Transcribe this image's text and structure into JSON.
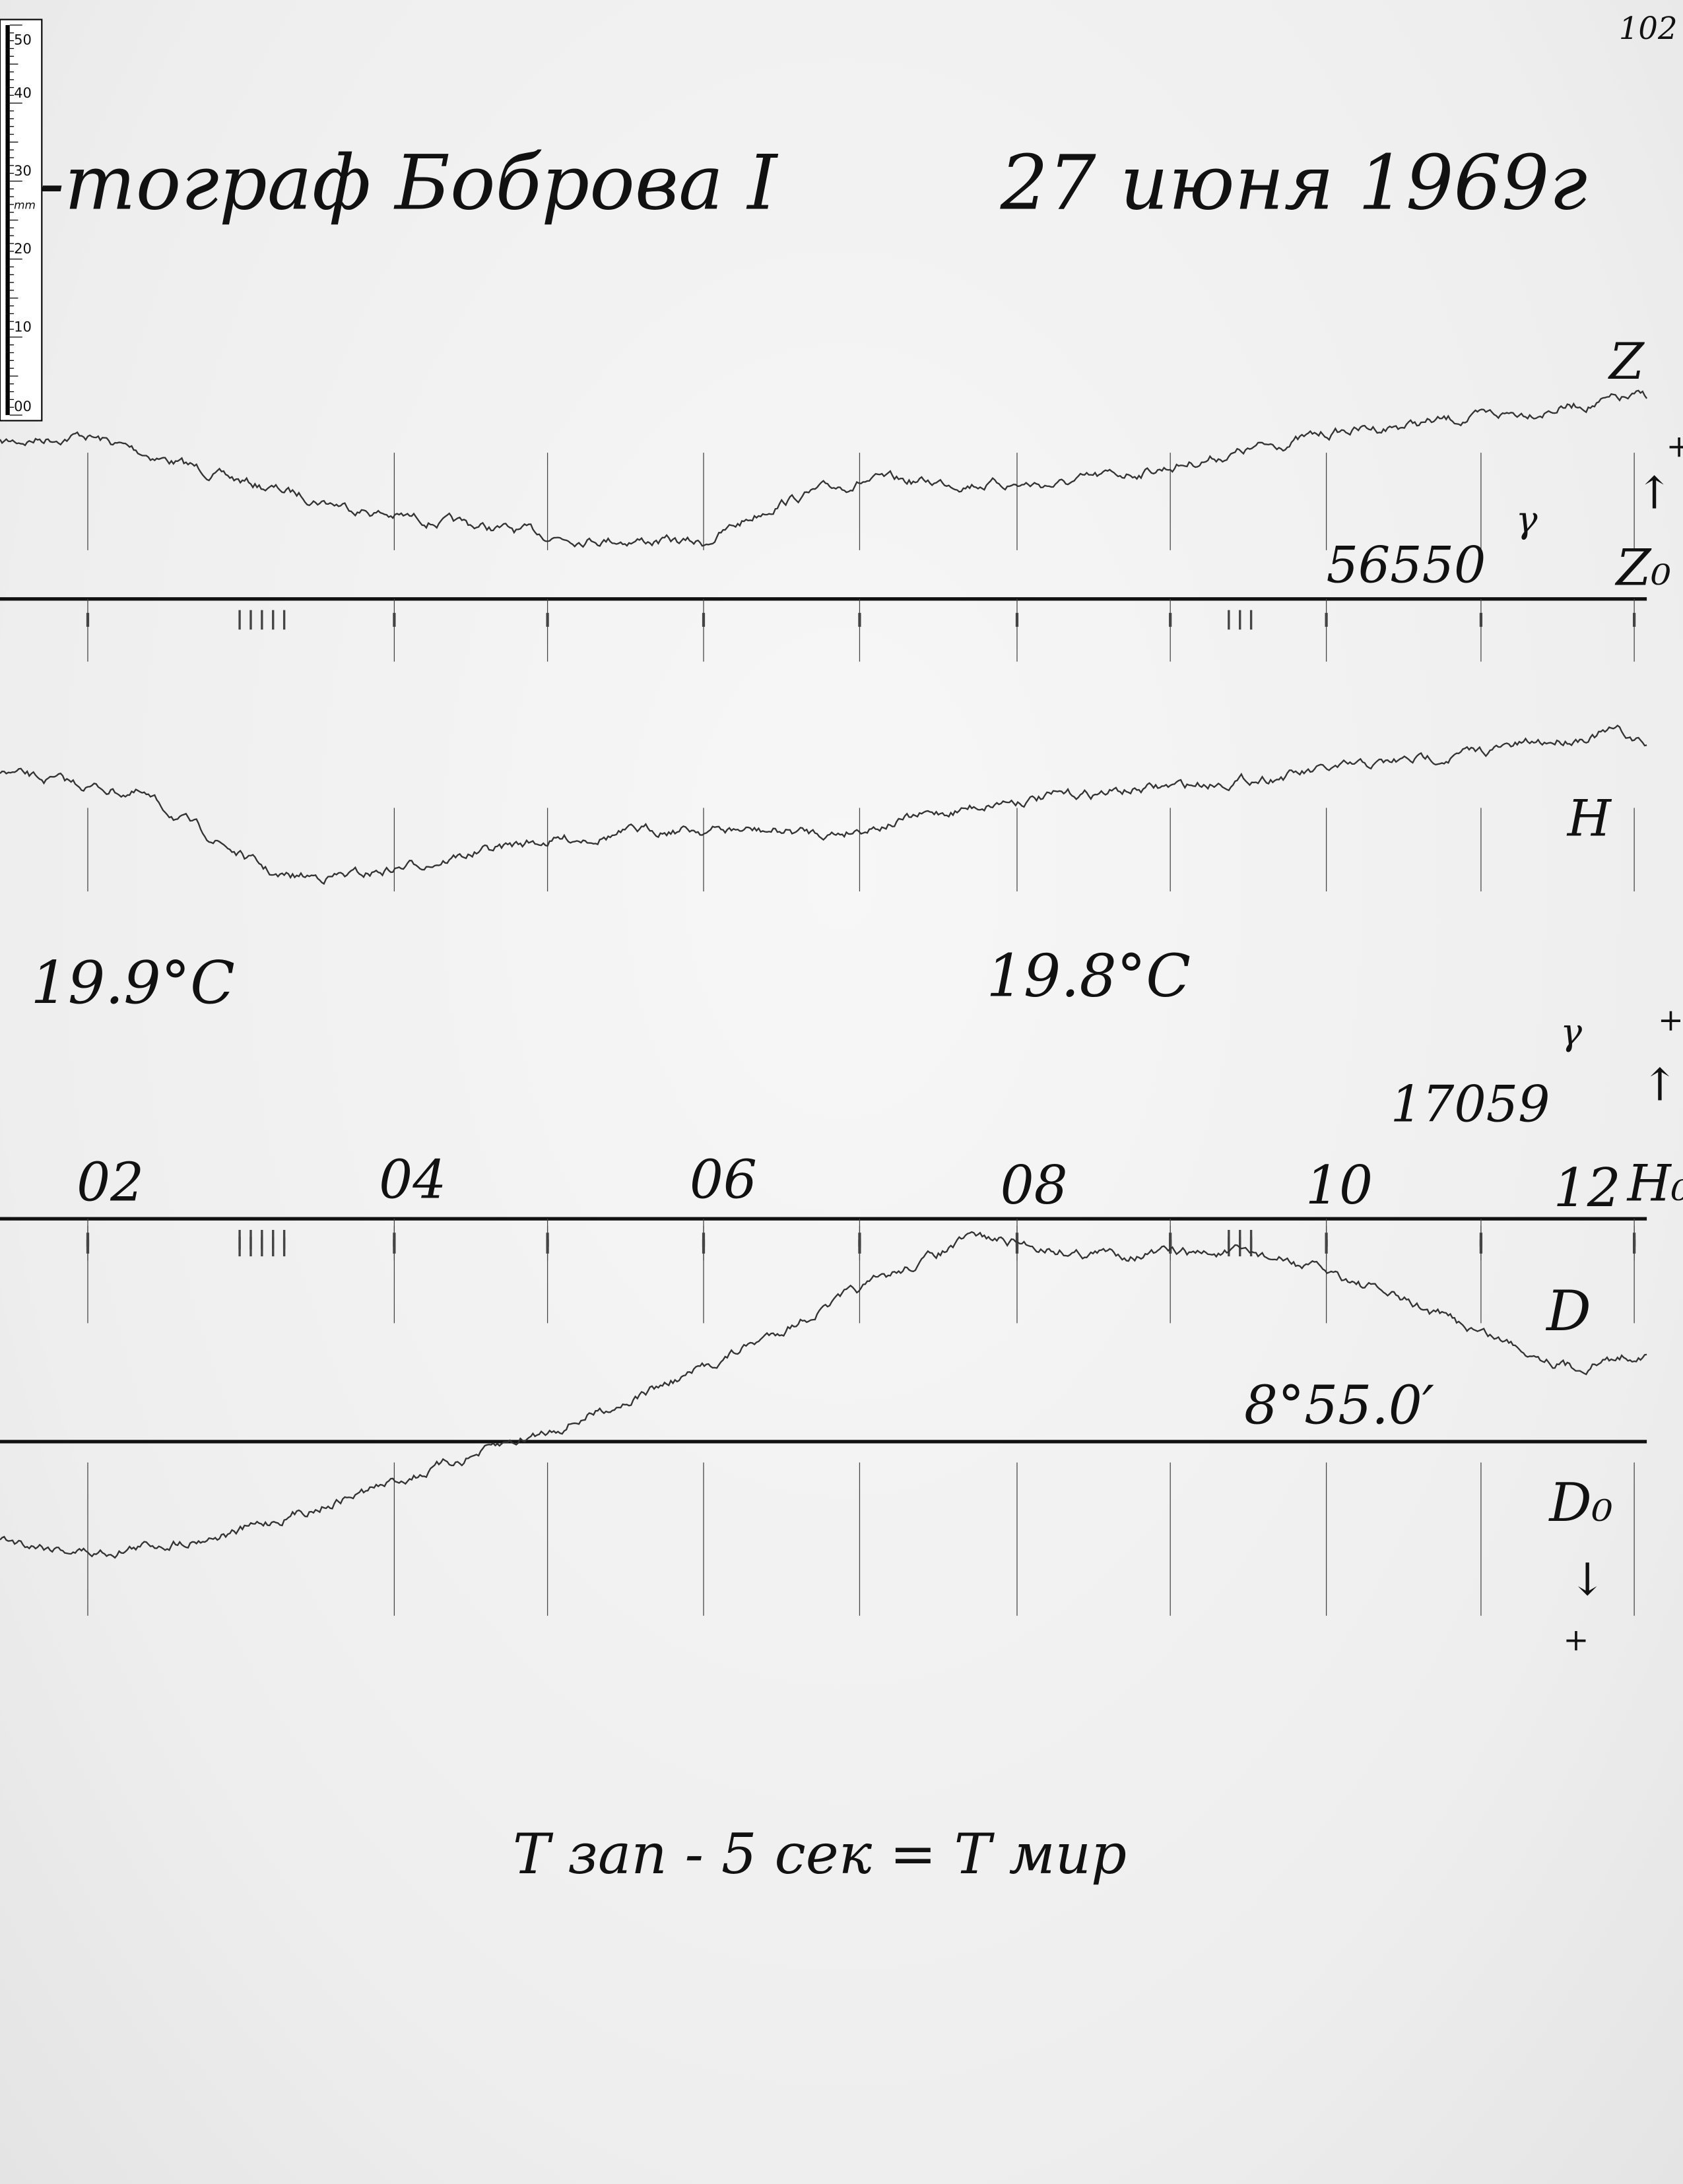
{
  "page_number": "102",
  "title": {
    "instrument": "-тограф Боброва I",
    "date": "27 июня 1969г"
  },
  "ruler": {
    "unit": "mm",
    "labels": [
      "50",
      "40",
      "30",
      "20",
      "10",
      "00"
    ]
  },
  "channels": {
    "z": {
      "label": "Z",
      "baseline_label": "Z₀",
      "baseline_value": "56550",
      "unit": "γ",
      "direction": "↑",
      "sign": "+"
    },
    "h": {
      "label": "H",
      "baseline_label": "H₀",
      "baseline_value": "17059",
      "unit": "γ",
      "direction": "↑",
      "sign": "+"
    },
    "d": {
      "label": "D",
      "baseline_label": "D₀",
      "baseline_value": "8°55.0′",
      "direction": "↓",
      "sign": "+"
    }
  },
  "temperatures": [
    "19.9°C",
    "19.8°C"
  ],
  "hour_labels": [
    "02",
    "04",
    "06",
    "08",
    "10",
    "12"
  ],
  "footer_note": "T зап - 5 сек = T мир",
  "colors": {
    "paper": "#efefef",
    "ink": "#111111",
    "trace": "#333333"
  }
}
